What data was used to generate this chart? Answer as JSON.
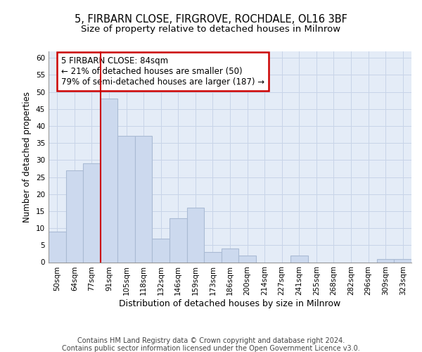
{
  "title_line1": "5, FIRBARN CLOSE, FIRGROVE, ROCHDALE, OL16 3BF",
  "title_line2": "Size of property relative to detached houses in Milnrow",
  "xlabel": "Distribution of detached houses by size in Milnrow",
  "ylabel": "Number of detached properties",
  "categories": [
    "50sqm",
    "64sqm",
    "77sqm",
    "91sqm",
    "105sqm",
    "118sqm",
    "132sqm",
    "146sqm",
    "159sqm",
    "173sqm",
    "186sqm",
    "200sqm",
    "214sqm",
    "227sqm",
    "241sqm",
    "255sqm",
    "268sqm",
    "282sqm",
    "296sqm",
    "309sqm",
    "323sqm"
  ],
  "values": [
    9,
    27,
    29,
    48,
    37,
    37,
    7,
    13,
    16,
    3,
    4,
    2,
    0,
    0,
    2,
    0,
    0,
    0,
    0,
    1,
    1
  ],
  "bar_color": "#ccd9ee",
  "bar_edge_color": "#aabbd4",
  "vline_x": 3.0,
  "vline_color": "#cc0000",
  "annotation_text": "5 FIRBARN CLOSE: 84sqm\n← 21% of detached houses are smaller (50)\n79% of semi-detached houses are larger (187) →",
  "annotation_box_color": "#ffffff",
  "annotation_box_edge_color": "#cc0000",
  "ylim": [
    0,
    62
  ],
  "yticks": [
    0,
    5,
    10,
    15,
    20,
    25,
    30,
    35,
    40,
    45,
    50,
    55,
    60
  ],
  "grid_color": "#c8d4e8",
  "bg_color": "#e4ecf7",
  "footer_line1": "Contains HM Land Registry data © Crown copyright and database right 2024.",
  "footer_line2": "Contains public sector information licensed under the Open Government Licence v3.0.",
  "title_fontsize": 10.5,
  "subtitle_fontsize": 9.5,
  "xlabel_fontsize": 9,
  "ylabel_fontsize": 8.5,
  "tick_fontsize": 7.5,
  "footer_fontsize": 7,
  "annotation_fontsize": 8.5
}
